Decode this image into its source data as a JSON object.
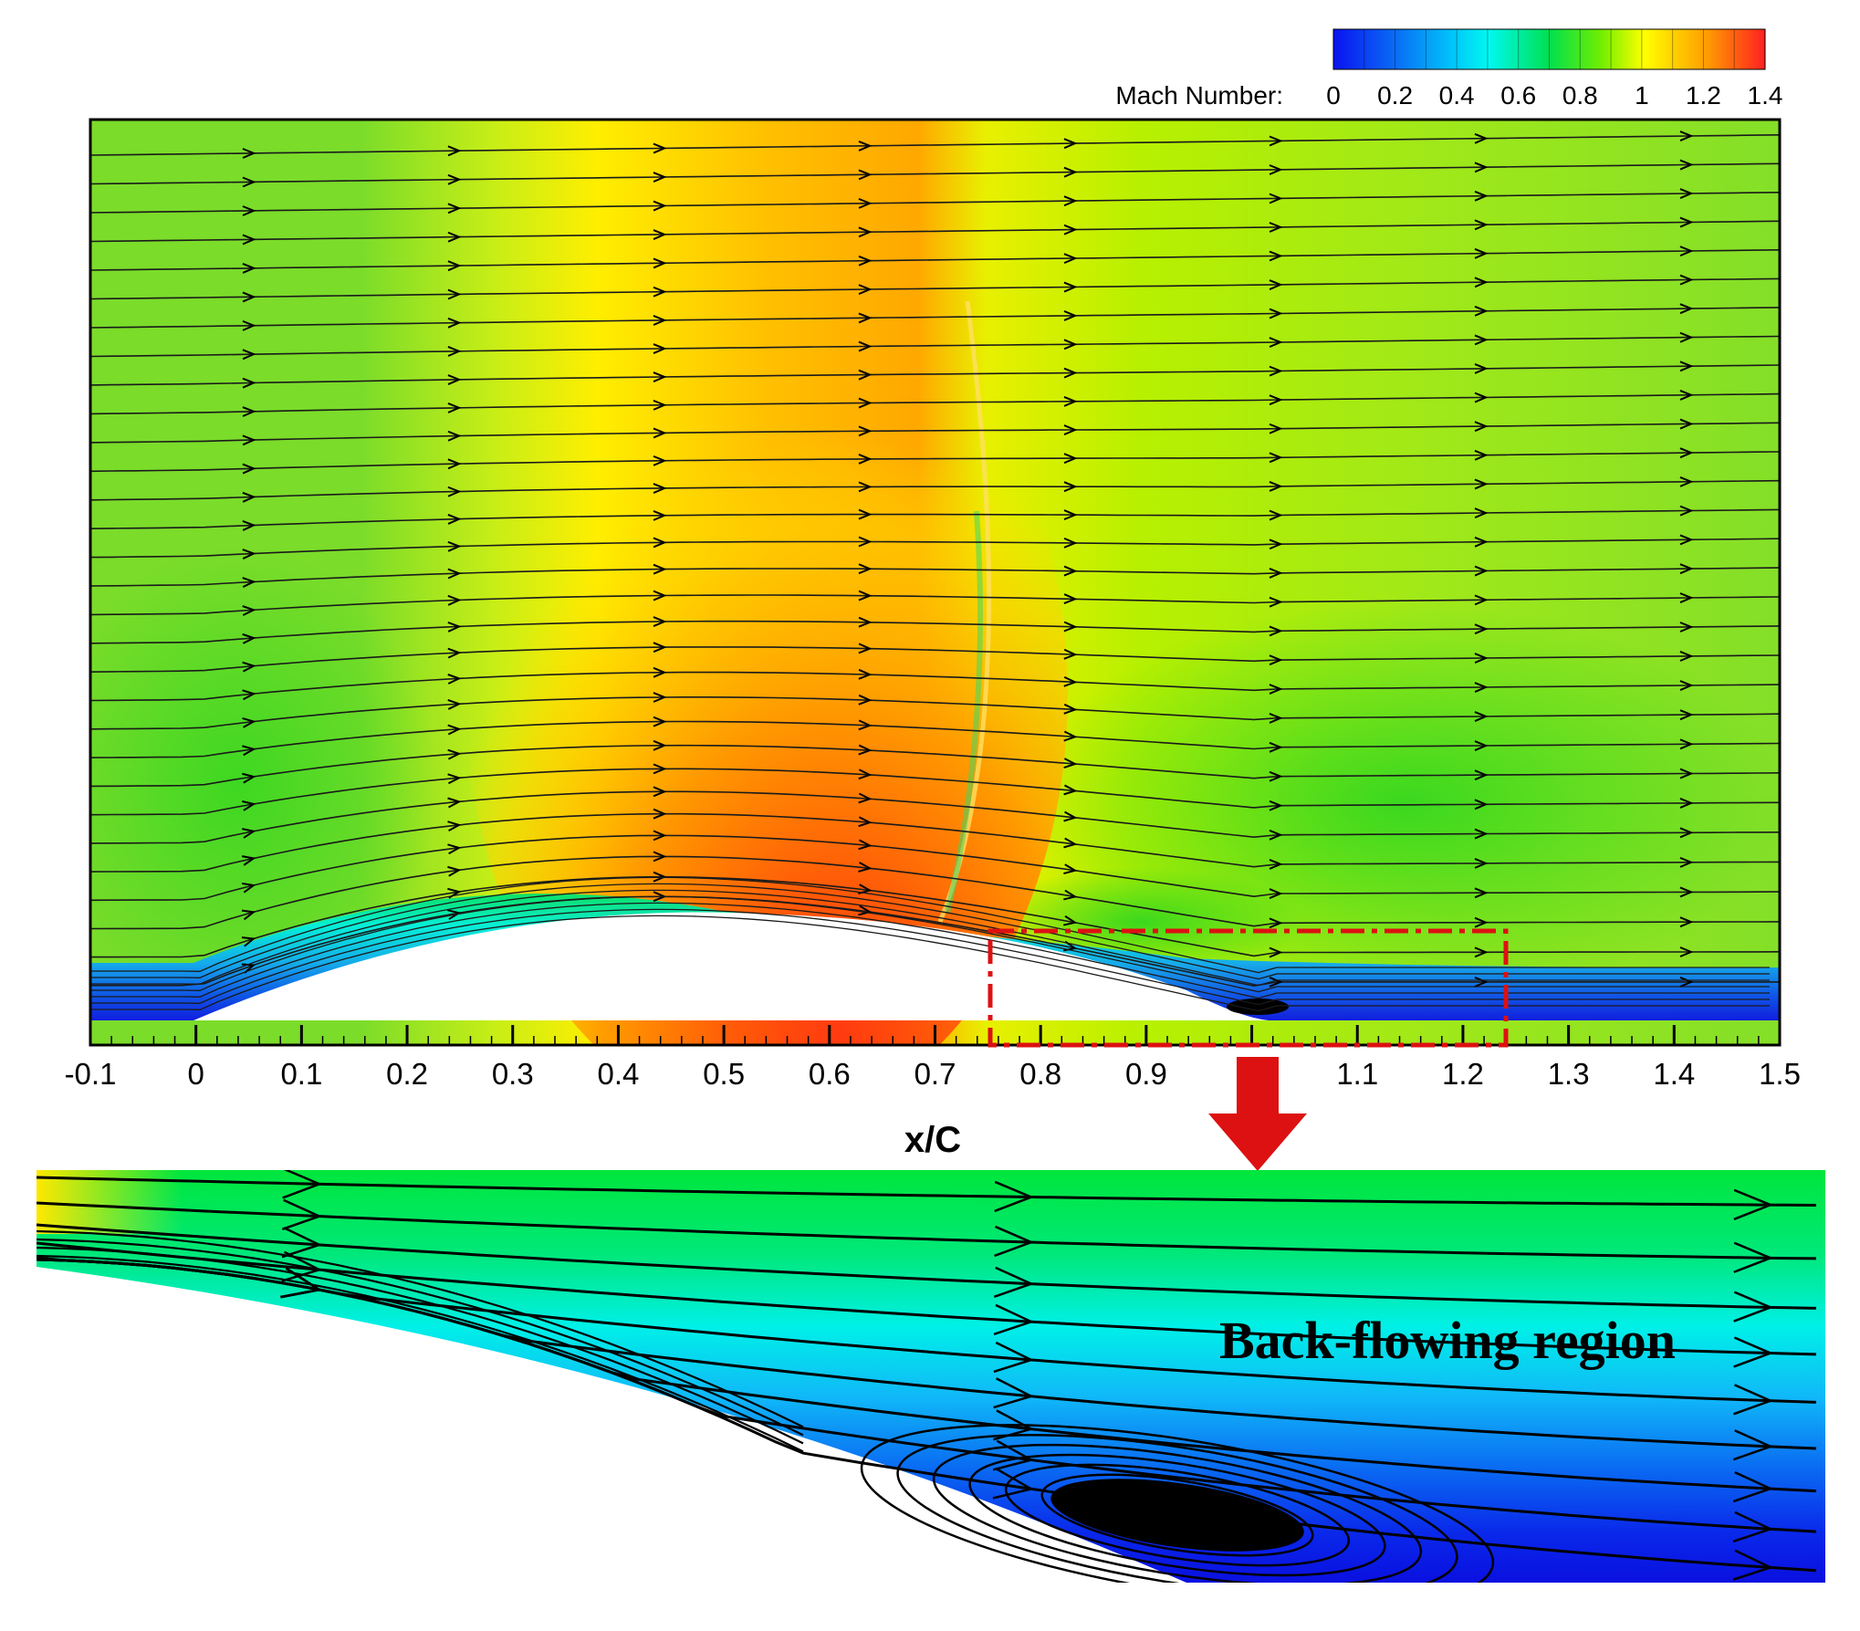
{
  "chart_data": {
    "type": "heatmap",
    "xlabel": "x/C",
    "ylabel": "",
    "xlim": [
      -0.1,
      1.5
    ],
    "x_ticks": [
      "-0.1",
      "0",
      "0.1",
      "0.2",
      "0.3",
      "0.4",
      "0.5",
      "0.6",
      "0.7",
      "0.8",
      "0.9",
      "1",
      "1.1",
      "1.2",
      "1.3",
      "1.4",
      "1.5"
    ],
    "colorbar": {
      "label": "Mach Number:",
      "range": [
        0,
        1.4
      ],
      "ticks": [
        "0",
        "0.2",
        "0.4",
        "0.6",
        "0.8",
        "1",
        "1.2",
        "1.4"
      ],
      "colors": [
        "#0a12f0",
        "#0a5cf5",
        "#10b4f8",
        "#00f8f0",
        "#00e05a",
        "#7ef000",
        "#ffff00",
        "#ffa500",
        "#ff2020"
      ]
    },
    "overlay": "streamlines",
    "airfoil_x_range": [
      0,
      1
    ],
    "shock_x": 0.75,
    "peak_mach": 1.35,
    "zoom_box": {
      "x_range": [
        0.76,
        1.24
      ]
    },
    "annotation": "Back-flowing region",
    "grid": false
  },
  "colors": {
    "zoom_box": "#dd1111",
    "arrow": "#dd1111",
    "axis": "#000000"
  }
}
